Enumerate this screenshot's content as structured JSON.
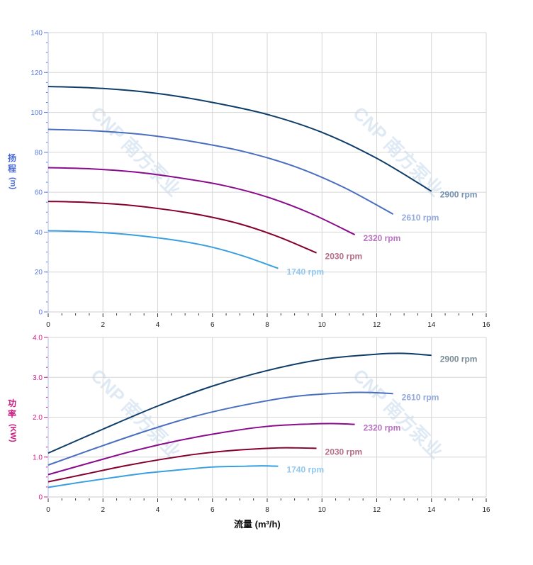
{
  "watermark": "CNP 南方泵业",
  "chart_data": [
    {
      "type": "line",
      "ylabel": [
        "扬",
        "程",
        "(m)"
      ],
      "xlim": [
        0,
        16
      ],
      "ylim": [
        0,
        140
      ],
      "xticks": [
        0,
        2,
        4,
        6,
        8,
        10,
        12,
        14,
        16
      ],
      "yticks": [
        0,
        20,
        40,
        60,
        80,
        100,
        120,
        140
      ],
      "grid": true,
      "axis_color": "#5b7be0",
      "series": [
        {
          "name": "2900 rpm",
          "color": "#0f3d69",
          "label_color": "#7391b3",
          "x": [
            0,
            2,
            4,
            6,
            8,
            10,
            12,
            14
          ],
          "y": [
            113,
            112,
            109.5,
            105,
            99,
            90,
            77,
            60.5
          ]
        },
        {
          "name": "2610 rpm",
          "color": "#4a6fc0",
          "label_color": "#93a9dd",
          "x": [
            0,
            1.8,
            3.6,
            5.4,
            7.2,
            9,
            10.8,
            12.6
          ],
          "y": [
            91.5,
            90.7,
            88.7,
            85.1,
            80.2,
            72.9,
            62.4,
            49.0
          ]
        },
        {
          "name": "2320 rpm",
          "color": "#8a0b8c",
          "label_color": "#b873c0",
          "x": [
            0,
            1.6,
            3.2,
            4.8,
            6.4,
            8,
            9.6,
            11.2
          ],
          "y": [
            72.3,
            71.7,
            70.1,
            67.2,
            63.4,
            57.6,
            49.3,
            38.7
          ]
        },
        {
          "name": "2030 rpm",
          "color": "#85002f",
          "label_color": "#b86c88",
          "x": [
            0,
            1.4,
            2.8,
            4.2,
            5.6,
            7,
            8.4,
            9.8
          ],
          "y": [
            55.4,
            54.9,
            53.7,
            51.5,
            48.5,
            44.1,
            37.7,
            29.6
          ]
        },
        {
          "name": "1740 rpm",
          "color": "#3a9fe0",
          "label_color": "#92c9ef",
          "x": [
            0,
            1.2,
            2.4,
            3.6,
            4.8,
            6,
            7.2,
            8.4
          ],
          "y": [
            40.7,
            40.3,
            39.4,
            37.8,
            35.6,
            32.4,
            27.7,
            21.8
          ]
        }
      ]
    },
    {
      "type": "line",
      "ylabel": [
        "功",
        "率",
        "(KW)"
      ],
      "xlabel": "流量 (m³/h)",
      "xlim": [
        0,
        16
      ],
      "ylim": [
        0,
        4.0
      ],
      "xticks": [
        0,
        2,
        4,
        6,
        8,
        10,
        12,
        14,
        16
      ],
      "yticks": [
        "0",
        "1.0",
        "2.0",
        "3.0",
        "4.0"
      ],
      "grid": true,
      "axis_color": "#d0208a",
      "series": [
        {
          "name": "2900 rpm",
          "color": "#0f3d69",
          "label_color": "#7a8c96",
          "x": [
            0,
            2,
            4,
            6,
            8,
            10,
            12,
            13,
            14
          ],
          "y": [
            1.1,
            1.7,
            2.28,
            2.78,
            3.17,
            3.45,
            3.58,
            3.6,
            3.55
          ]
        },
        {
          "name": "2610 rpm",
          "color": "#4a6fc0",
          "label_color": "#93a9dd",
          "x": [
            0,
            1.8,
            3.6,
            5.4,
            7.2,
            9,
            10.8,
            11.7,
            12.6
          ],
          "y": [
            0.8,
            1.24,
            1.66,
            2.03,
            2.31,
            2.52,
            2.61,
            2.62,
            2.59
          ]
        },
        {
          "name": "2320 rpm",
          "color": "#8a0b8c",
          "label_color": "#b873c0",
          "x": [
            0,
            1.6,
            3.2,
            4.8,
            6.4,
            8,
            9.6,
            10.4,
            11.2
          ],
          "y": [
            0.56,
            0.87,
            1.17,
            1.42,
            1.62,
            1.77,
            1.83,
            1.84,
            1.82
          ]
        },
        {
          "name": "2030 rpm",
          "color": "#85002f",
          "label_color": "#b86c88",
          "x": [
            0,
            1.4,
            2.8,
            4.2,
            5.6,
            7,
            8.4,
            9.1,
            9.8
          ],
          "y": [
            0.38,
            0.58,
            0.78,
            0.95,
            1.09,
            1.18,
            1.23,
            1.23,
            1.22
          ]
        },
        {
          "name": "1740 rpm",
          "color": "#3a9fe0",
          "label_color": "#92c9ef",
          "x": [
            0,
            1.2,
            2.4,
            3.6,
            4.8,
            6,
            7.2,
            7.8,
            8.4
          ],
          "y": [
            0.24,
            0.37,
            0.49,
            0.6,
            0.68,
            0.75,
            0.77,
            0.78,
            0.77
          ]
        }
      ]
    }
  ]
}
